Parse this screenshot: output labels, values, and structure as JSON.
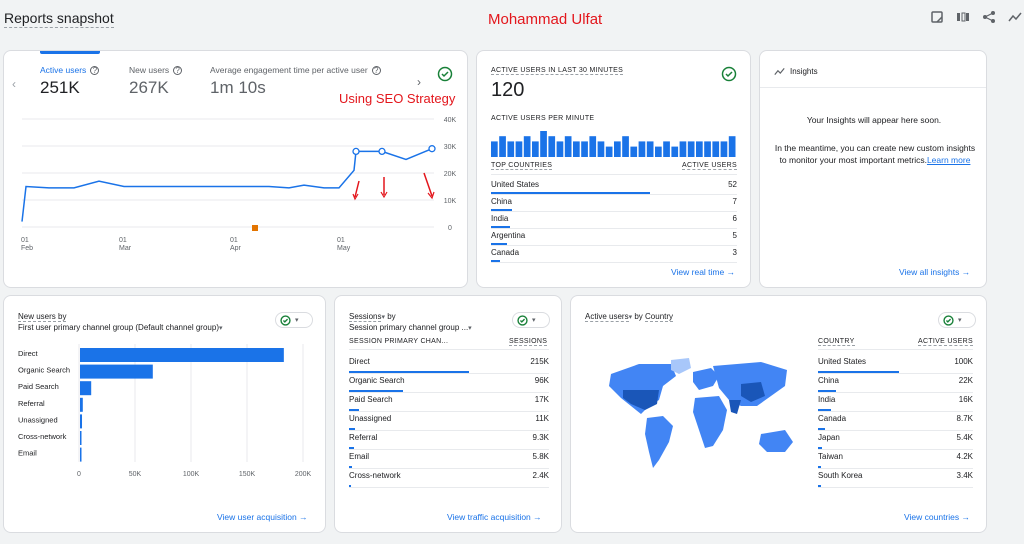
{
  "header": {
    "title": "Reports snapshot",
    "watermark": "Mohammad Ulfat"
  },
  "overview": {
    "metrics": [
      {
        "label": "Active users",
        "value": "251K"
      },
      {
        "label": "New users",
        "value": "267K"
      },
      {
        "label": "Average engagement time per active user",
        "value": "1m 10s"
      }
    ],
    "annotation": "Using SEO Strategy",
    "y_ticks": [
      "40K",
      "30K",
      "20K",
      "10K",
      "0"
    ],
    "x_ticks": [
      {
        "day": "01",
        "month": "Feb"
      },
      {
        "day": "01",
        "month": "Mar"
      },
      {
        "day": "01",
        "month": "Apr"
      },
      {
        "day": "01",
        "month": "May"
      }
    ]
  },
  "realtime": {
    "title": "ACTIVE USERS IN LAST 30 MINUTES",
    "value": "120",
    "per_minute_label": "ACTIVE USERS PER MINUTE",
    "col1": "TOP COUNTRIES",
    "col2": "ACTIVE USERS",
    "rows": [
      {
        "name": "United States",
        "value": "52",
        "share": 0.68
      },
      {
        "name": "China",
        "value": "7",
        "share": 0.09
      },
      {
        "name": "India",
        "value": "6",
        "share": 0.08
      },
      {
        "name": "Argentina",
        "value": "5",
        "share": 0.07
      },
      {
        "name": "Canada",
        "value": "3",
        "share": 0.04
      }
    ],
    "link": "View real time"
  },
  "insights": {
    "title": "Insights",
    "headline": "Your Insights will appear here soon.",
    "body": "In the meantime, you can create new custom insights to monitor your most important metrics.",
    "learn_more": "Learn more",
    "link": "View all insights"
  },
  "new_users": {
    "title": "New users by",
    "subtitle": "First user primary channel group (Default channel group)",
    "ticks": [
      "0",
      "50K",
      "100K",
      "150K",
      "200K"
    ],
    "link": "View user acquisition"
  },
  "sessions": {
    "title": "Sessions",
    "by": "by",
    "subtitle": "Session primary channel group ...",
    "col1": "SESSION PRIMARY CHAN...",
    "col2": "SESSIONS",
    "rows": [
      {
        "name": "Direct",
        "value": "215K",
        "share": 1.0
      },
      {
        "name": "Organic Search",
        "value": "96K",
        "share": 0.45
      },
      {
        "name": "Paid Search",
        "value": "17K",
        "share": 0.08
      },
      {
        "name": "Unassigned",
        "value": "11K",
        "share": 0.05
      },
      {
        "name": "Referral",
        "value": "9.3K",
        "share": 0.043
      },
      {
        "name": "Email",
        "value": "5.8K",
        "share": 0.027
      },
      {
        "name": "Cross-network",
        "value": "2.4K",
        "share": 0.011
      }
    ],
    "link": "View traffic acquisition"
  },
  "countries": {
    "title": "Active users",
    "by": "by",
    "dim": "Country",
    "col1": "COUNTRY",
    "col2": "ACTIVE USERS",
    "rows": [
      {
        "name": "United States",
        "value": "100K",
        "share": 1.0
      },
      {
        "name": "China",
        "value": "22K",
        "share": 0.22
      },
      {
        "name": "India",
        "value": "16K",
        "share": 0.16
      },
      {
        "name": "Canada",
        "value": "8.7K",
        "share": 0.087
      },
      {
        "name": "Japan",
        "value": "5.4K",
        "share": 0.054
      },
      {
        "name": "Taiwan",
        "value": "4.2K",
        "share": 0.042
      },
      {
        "name": "South Korea",
        "value": "3.4K",
        "share": 0.034
      }
    ],
    "link": "View countries"
  },
  "chart_data": [
    {
      "type": "line",
      "title": "",
      "series": [
        {
          "name": "Active users",
          "values": [
            2,
            15,
            14.5,
            14.5,
            17,
            15,
            15,
            15,
            15,
            15,
            15,
            15,
            15,
            14.5,
            15.5,
            14.5,
            14.5,
            21,
            28,
            28,
            25,
            29
          ]
        }
      ],
      "ylim": [
        0,
        40000
      ],
      "color": "#1a73e8"
    },
    {
      "type": "bar",
      "title": "",
      "categories": [
        "Direct",
        "Organic Search",
        "Paid Search",
        "Referral",
        "Unassigned",
        "Cross-network",
        "Email"
      ],
      "values": [
        182000,
        65000,
        10000,
        2500,
        1800,
        1200,
        1000
      ],
      "xlim": [
        0,
        200000
      ],
      "color": "#1a73e8"
    },
    {
      "type": "bar",
      "title": "",
      "categories": [
        "1",
        "2",
        "3",
        "4",
        "5",
        "6",
        "7",
        "8",
        "9",
        "10",
        "11",
        "12",
        "13",
        "14",
        "15",
        "16",
        "17",
        "18",
        "19",
        "20",
        "21",
        "22",
        "23",
        "24",
        "25",
        "26",
        "27",
        "28",
        "29",
        "30"
      ],
      "values": [
        3,
        4,
        3,
        3,
        4,
        3,
        5,
        4,
        3,
        4,
        3,
        3,
        4,
        3,
        2,
        3,
        4,
        2,
        3,
        3,
        2,
        3,
        2,
        3,
        3,
        3,
        3,
        3,
        3,
        4
      ],
      "color": "#1a73e8"
    }
  ]
}
